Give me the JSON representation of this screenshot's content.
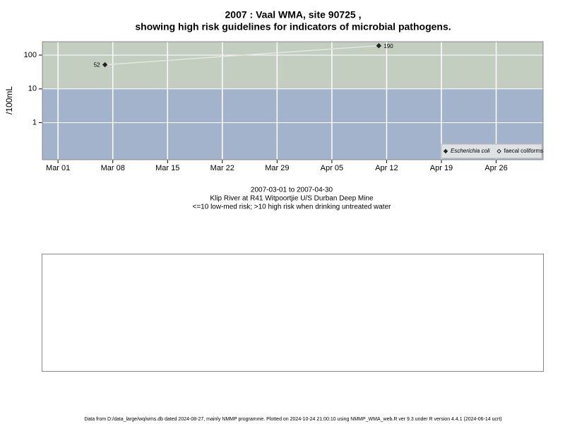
{
  "chart_data": {
    "type": "line",
    "title": "2007 : Vaal WMA, site 90725 ,",
    "subtitle": "showing high risk guidelines for indicators of microbial pathogens.",
    "y_label": "/100mL",
    "caption": [
      "2007-03-01 to 2007-04-30",
      "Klip River at R41 Witpoortjie U/S Durban Deep Mine",
      "<=10 low-med risk; >10 high risk when drinking untreated water"
    ],
    "footer": "Data from D:/data_large/wq/wms.db dated 2024-08-27, mainly NMMP programme. Plotted on 2024-10-24 21:00:10 using NMMP_WMA_web.R ver 9.3 under R version 4.4.1 (2024-06-14 ucrt)",
    "log_y": true,
    "grid": true,
    "legend_position": "bottom-right",
    "guideline": 10,
    "high_risk_color": "#c3cdc0",
    "low_risk_color": "#a3b3cb",
    "xlim": [
      "2007-02-27",
      "2007-05-02"
    ],
    "xticks": [
      {
        "value": "2007-03-01",
        "label": "Mar 01"
      },
      {
        "value": "2007-03-08",
        "label": "Mar 08"
      },
      {
        "value": "2007-03-15",
        "label": "Mar 15"
      },
      {
        "value": "2007-03-22",
        "label": "Mar 22"
      },
      {
        "value": "2007-03-29",
        "label": "Mar 29"
      },
      {
        "value": "2007-04-05",
        "label": "Apr 05"
      },
      {
        "value": "2007-04-12",
        "label": "Apr 12"
      },
      {
        "value": "2007-04-19",
        "label": "Apr 19"
      },
      {
        "value": "2007-04-26",
        "label": "Apr 26"
      }
    ],
    "ylim": [
      0.08,
      250
    ],
    "yticks": [
      1,
      10,
      100
    ],
    "series": [
      {
        "name": "Escherichia coli",
        "color": "#222222",
        "line_color": "#e4e6e0",
        "filled": true,
        "x": [
          "2007-03-07",
          "2007-04-11"
        ],
        "values": [
          52,
          190
        ]
      },
      {
        "name": "faecal coliforms",
        "color": "#222222",
        "filled": false,
        "x": [],
        "values": []
      }
    ]
  }
}
